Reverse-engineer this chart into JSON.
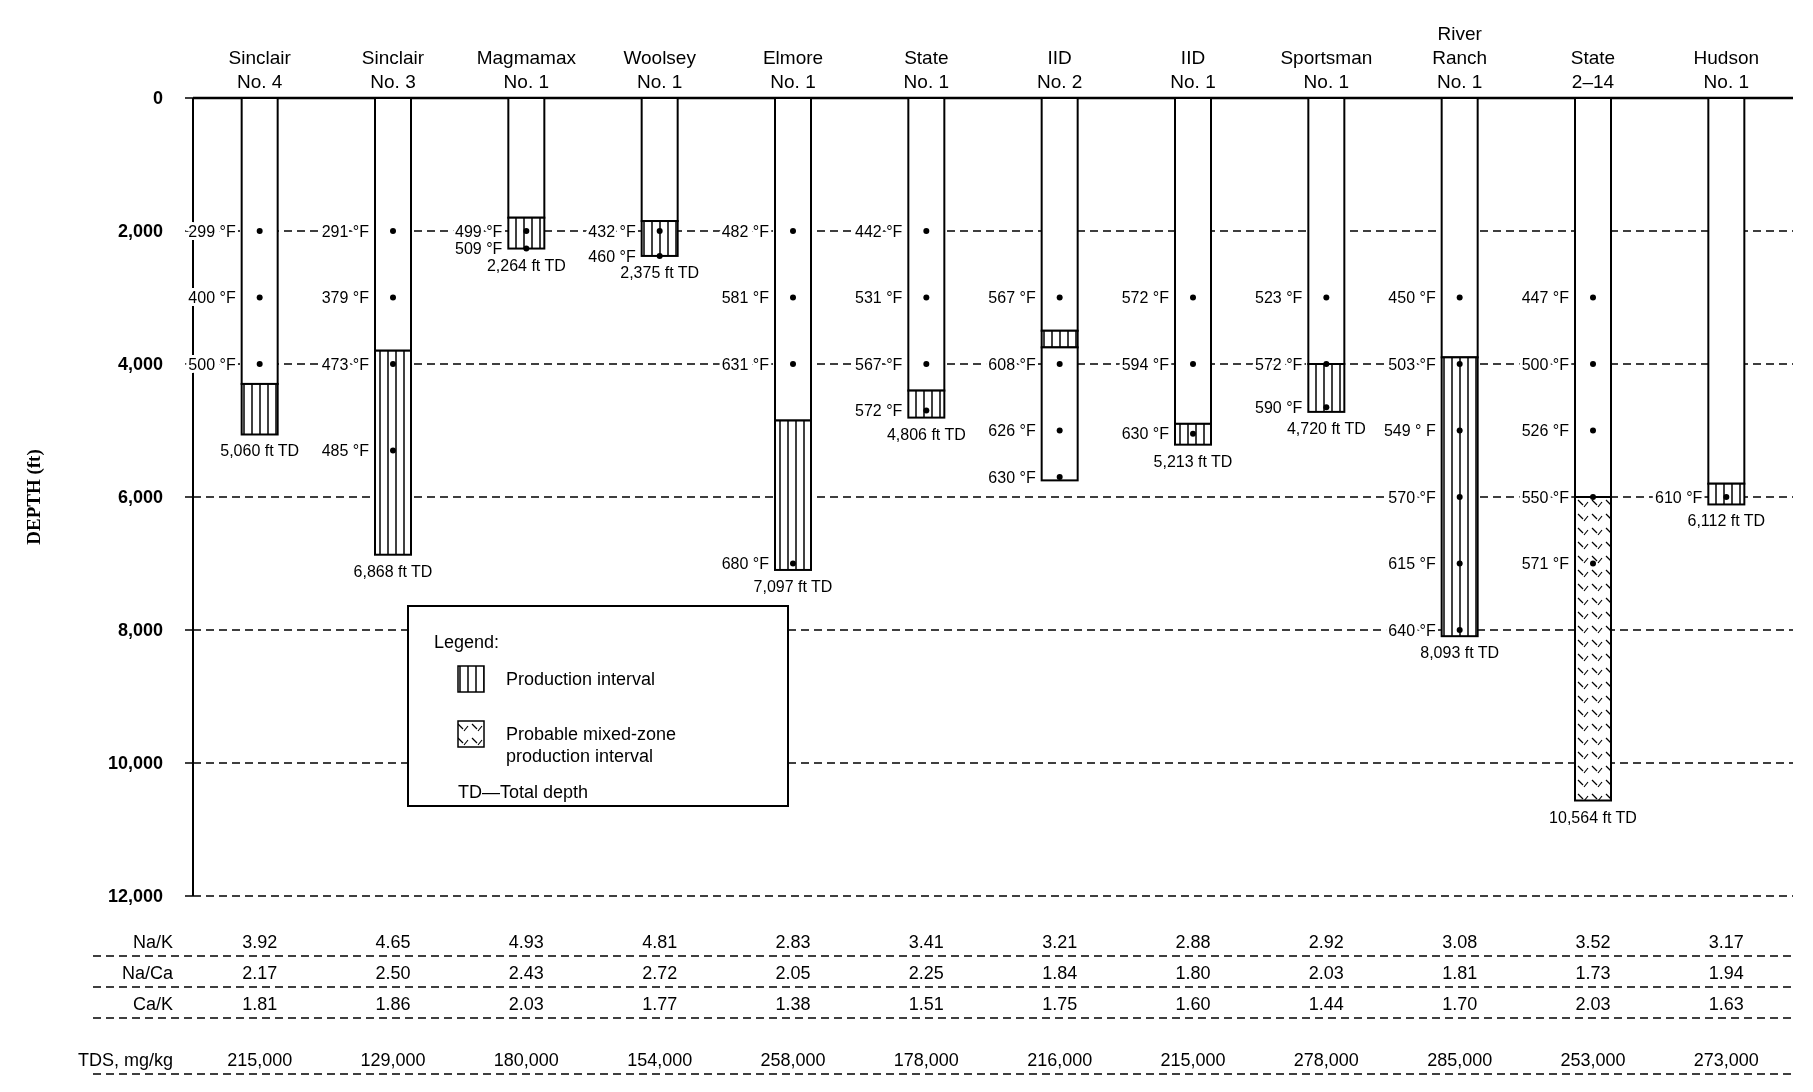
{
  "chart_data": {
    "type": "bar",
    "stacked": true,
    "ylabel": "DEPTH (ft)",
    "legend_title": "Legend:",
    "legend": "bottom left",
    "grid": "y",
    "line_style": "dashed",
    "categories": [
      "Sinclair\nNo. 4",
      "Sinclair\nNo. 3",
      "Magmamax\nNo. 1",
      "Woolsey\nNo. 1",
      "Elmore\nNo. 1",
      "State\nNo. 1",
      "IID\nNo. 2",
      "IID\nNo. 1",
      "Sportsman\nNo. 1",
      "River\nRanch\nNo. 1",
      "State\n2–14",
      "Hudson\nNo. 1"
    ],
    "ylim": [
      12000,
      0
    ],
    "yticks": [
      0,
      {
        "value": 2000,
        "label": "2,000"
      },
      {
        "value": 4000,
        "label": "4,000"
      },
      {
        "value": 6000,
        "label": "6,000"
      },
      {
        "value": 8000,
        "label": "8,000"
      },
      {
        "value": 10000,
        "label": "10,000"
      },
      {
        "value": 12000,
        "label": "12,000"
      }
    ],
    "series": [
      {
        "color": "#ffffff",
        "values": [
          4300,
          3800,
          1800,
          1850,
          4850,
          4400,
          3500,
          4900,
          4000,
          3900,
          6000,
          5800
        ]
      },
      {
        "name": "Production interval",
        "color": "#000000",
        "values": [
          760,
          3068,
          464,
          525,
          2247,
          406,
          250,
          313,
          720,
          4193,
          null,
          312
        ]
      },
      {
        "name": "Probable mixed-zone production interval",
        "color": "#000000",
        "values": [
          null,
          null,
          null,
          null,
          null,
          null,
          null,
          null,
          null,
          null,
          4564,
          null
        ]
      },
      {
        "color": "#ffffff",
        "values": [
          null,
          null,
          null,
          null,
          null,
          null,
          2000,
          null,
          null,
          null,
          null,
          null
        ]
      },
      {
        "type": "scatter",
        "marker": "circle",
        "color": "#000000",
        "x": [
          "Sinclair\nNo. 4",
          "Sinclair\nNo. 4",
          "Sinclair\nNo. 4",
          "Sinclair\nNo. 3",
          "Sinclair\nNo. 3",
          "Sinclair\nNo. 3",
          "Sinclair\nNo. 3",
          "Magmamax\nNo. 1",
          "Magmamax\nNo. 1",
          "Woolsey\nNo. 1",
          "Woolsey\nNo. 1",
          "Elmore\nNo. 1",
          "Elmore\nNo. 1",
          "Elmore\nNo. 1",
          "Elmore\nNo. 1",
          "State\nNo. 1",
          "State\nNo. 1",
          "State\nNo. 1",
          "State\nNo. 1",
          "IID\nNo. 2",
          "IID\nNo. 2",
          "IID\nNo. 2",
          "IID\nNo. 2",
          "IID\nNo. 1",
          "IID\nNo. 1",
          "IID\nNo. 1",
          "Sportsman\nNo. 1",
          "Sportsman\nNo. 1",
          "Sportsman\nNo. 1",
          "River\nRanch\nNo. 1",
          "River\nRanch\nNo. 1",
          "River\nRanch\nNo. 1",
          "River\nRanch\nNo. 1",
          "River\nRanch\nNo. 1",
          "River\nRanch\nNo. 1",
          "State\n2–14",
          "State\n2–14",
          "State\n2–14",
          "State\n2–14",
          "State\n2–14",
          "Hudson\nNo. 1"
        ],
        "values": [
          2000,
          3000,
          4000,
          2000,
          3000,
          4000,
          5300,
          2000,
          2264,
          2000,
          2375,
          2000,
          3000,
          4000,
          7000,
          2000,
          3000,
          4000,
          4700,
          3000,
          4000,
          5000,
          5700,
          3000,
          4000,
          5050,
          3000,
          4000,
          4650,
          3000,
          4000,
          5000,
          6000,
          7000,
          8000,
          3000,
          4000,
          5000,
          6000,
          7000,
          6000
        ]
      }
    ],
    "annotations": [
      {
        "text": "299 °F",
        "x": "Sinclair\nNo. 4",
        "y": 2000
      },
      {
        "text": "400 °F",
        "x": "Sinclair\nNo. 4",
        "y": 3000
      },
      {
        "text": "500 °F",
        "x": "Sinclair\nNo. 4",
        "y": 4000
      },
      {
        "text": "5,060 ft TD",
        "x": "Sinclair\nNo. 4",
        "y": 5060
      },
      {
        "text": "291 °F",
        "x": "Sinclair\nNo. 3",
        "y": 2000
      },
      {
        "text": "379 °F",
        "x": "Sinclair\nNo. 3",
        "y": 3000
      },
      {
        "text": "473 °F",
        "x": "Sinclair\nNo. 3",
        "y": 4000
      },
      {
        "text": "485 °F",
        "x": "Sinclair\nNo. 3",
        "y": 5300
      },
      {
        "text": "6,868 ft TD",
        "x": "Sinclair\nNo. 3",
        "y": 6868
      },
      {
        "text": "499 °F",
        "x": "Magmamax\nNo. 1",
        "y": 2000
      },
      {
        "text": "509 °F",
        "x": "Magmamax\nNo. 1",
        "y": 2264
      },
      {
        "text": "2,264 ft TD",
        "x": "Magmamax\nNo. 1",
        "y": 2264
      },
      {
        "text": "432 °F",
        "x": "Woolsey\nNo. 1",
        "y": 2000
      },
      {
        "text": "460 °F",
        "x": "Woolsey\nNo. 1",
        "y": 2375
      },
      {
        "text": "2,375 ft TD",
        "x": "Woolsey\nNo. 1",
        "y": 2375
      },
      {
        "text": "482 °F",
        "x": "Elmore\nNo. 1",
        "y": 2000
      },
      {
        "text": "581 °F",
        "x": "Elmore\nNo. 1",
        "y": 3000
      },
      {
        "text": "631 °F",
        "x": "Elmore\nNo. 1",
        "y": 4000
      },
      {
        "text": "680 °F",
        "x": "Elmore\nNo. 1",
        "y": 7000
      },
      {
        "text": "7,097 ft TD",
        "x": "Elmore\nNo. 1",
        "y": 7097
      },
      {
        "text": "442 °F",
        "x": "State\nNo. 1",
        "y": 2000
      },
      {
        "text": "531 °F",
        "x": "State\nNo. 1",
        "y": 3000
      },
      {
        "text": "567 °F",
        "x": "State\nNo. 1",
        "y": 4000
      },
      {
        "text": "572 °F",
        "x": "State\nNo. 1",
        "y": 4700
      },
      {
        "text": "4,806 ft TD",
        "x": "State\nNo. 1",
        "y": 4806
      },
      {
        "text": "567 °F",
        "x": "IID\nNo. 2",
        "y": 3000
      },
      {
        "text": "608 °F",
        "x": "IID\nNo. 2",
        "y": 4000
      },
      {
        "text": "626 °F",
        "x": "IID\nNo. 2",
        "y": 5000
      },
      {
        "text": "630 °F",
        "x": "IID\nNo. 2",
        "y": 5700
      },
      {
        "text": "572 °F",
        "x": "IID\nNo. 1",
        "y": 3000
      },
      {
        "text": "594 °F",
        "x": "IID\nNo. 1",
        "y": 4000
      },
      {
        "text": "630 °F",
        "x": "IID\nNo. 1",
        "y": 5050
      },
      {
        "text": "5,213 ft TD",
        "x": "IID\nNo. 1",
        "y": 5213
      },
      {
        "text": "523 °F",
        "x": "Sportsman\nNo. 1",
        "y": 3000
      },
      {
        "text": "572 °F",
        "x": "Sportsman\nNo. 1",
        "y": 4000
      },
      {
        "text": "590 °F",
        "x": "Sportsman\nNo. 1",
        "y": 4650
      },
      {
        "text": "4,720 ft TD",
        "x": "Sportsman\nNo. 1",
        "y": 4720
      },
      {
        "text": "450 °F",
        "x": "River\nRanch\nNo. 1",
        "y": 3000
      },
      {
        "text": "503 °F",
        "x": "River\nRanch\nNo. 1",
        "y": 4000
      },
      {
        "text": "549 ° F",
        "x": "River\nRanch\nNo. 1",
        "y": 5000
      },
      {
        "text": "570 °F",
        "x": "River\nRanch\nNo. 1",
        "y": 6000
      },
      {
        "text": "615 °F",
        "x": "River\nRanch\nNo. 1",
        "y": 7000
      },
      {
        "text": "640 °F",
        "x": "River\nRanch\nNo. 1",
        "y": 8000
      },
      {
        "text": "8,093 ft TD",
        "x": "River\nRanch\nNo. 1",
        "y": 8093
      },
      {
        "text": "447 °F",
        "x": "State\n2–14",
        "y": 3000
      },
      {
        "text": "500 °F",
        "x": "State\n2–14",
        "y": 4000
      },
      {
        "text": "526 °F",
        "x": "State\n2–14",
        "y": 5000
      },
      {
        "text": "550 °F",
        "x": "State\n2–14",
        "y": 6000
      },
      {
        "text": "571 °F",
        "x": "State\n2–14",
        "y": 7000
      },
      {
        "text": "10,564 ft TD",
        "x": "State\n2–14",
        "y": 10564
      },
      {
        "text": "610 °F",
        "x": "Hudson\nNo. 1",
        "y": 6000
      },
      {
        "text": "6,112 ft TD",
        "x": "Hudson\nNo. 1",
        "y": 6112
      },
      "Na/K",
      "Na/Ca",
      "Ca/K",
      "TDS, mg/kg",
      "3.92",
      "4.65",
      "4.93",
      "4.81",
      "2.83",
      "3.41",
      "3.21",
      "2.88",
      "2.92",
      "3.08",
      "3.52",
      "3.17",
      "2.17",
      "2.50",
      "2.43",
      "2.72",
      "2.05",
      "2.25",
      "1.84",
      "1.80",
      "2.03",
      "1.81",
      "1.73",
      "1.94",
      "1.81",
      "1.86",
      "2.03",
      "1.77",
      "1.38",
      "1.51",
      "1.75",
      "1.60",
      "1.44",
      "1.70",
      "2.03",
      "1.63",
      "215,000",
      "129,000",
      "180,000",
      "154,000",
      "258,000",
      "178,000",
      "216,000",
      "215,000",
      "278,000",
      "285,000",
      "253,000",
      "273,000",
      "TD—Total depth"
    ]
  }
}
